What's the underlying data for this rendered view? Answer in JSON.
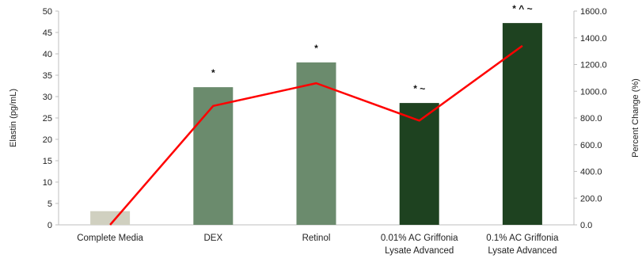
{
  "chart_data": {
    "type": "bar",
    "categories": [
      [
        "Complete Media"
      ],
      [
        "DEX"
      ],
      [
        "Retinol"
      ],
      [
        "0.01% AC Griffonia",
        "Lysate Advanced"
      ],
      [
        "0.1% AC Griffonia",
        "Lysate Advanced"
      ]
    ],
    "bar_series": {
      "values": [
        3.2,
        32.2,
        38.0,
        28.5,
        47.2
      ],
      "colors": [
        "#d0d0c0",
        "#6b8b6d",
        "#6b8b6d",
        "#1e4220",
        "#1e4220"
      ]
    },
    "line_series": {
      "values": [
        0,
        890,
        1060,
        780,
        1340
      ],
      "color": "#ff0000"
    },
    "significance_labels": [
      "",
      "*",
      "*",
      "* ~",
      "* ^ ~"
    ],
    "ylabel": "Elastin (pg/mL)",
    "ylim": [
      0,
      50
    ],
    "yticks": [
      "0",
      "5",
      "10",
      "15",
      "20",
      "25",
      "30",
      "35",
      "40",
      "45",
      "50"
    ],
    "y2label": "Percent Change (%)",
    "y2lim": [
      0,
      1600
    ],
    "y2ticks": [
      "0.0",
      "200.0",
      "400.0",
      "600.0",
      "800.0",
      "1000.0",
      "1200.0",
      "1400.0",
      "1600.0"
    ],
    "grid": false,
    "legend": "none"
  }
}
